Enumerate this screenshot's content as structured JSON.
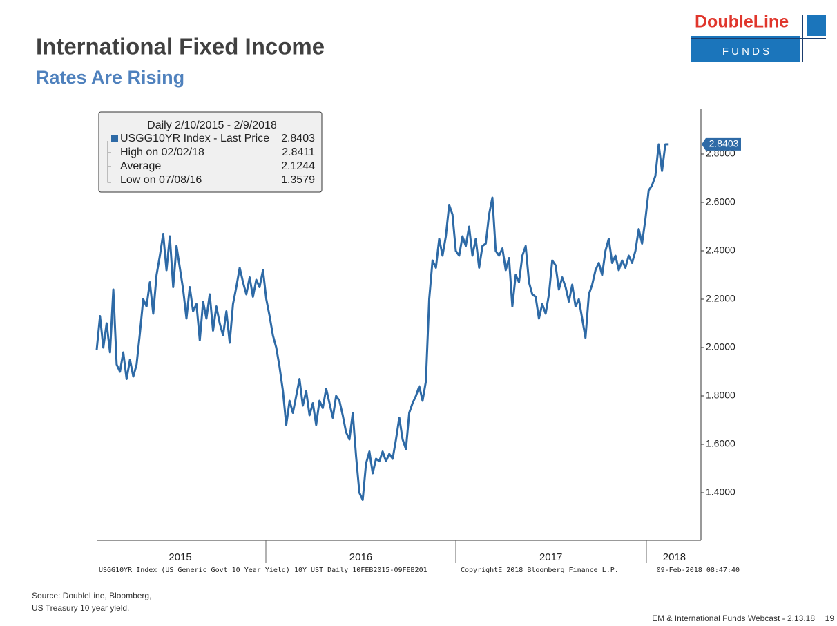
{
  "header": {
    "title": "International Fixed Income",
    "subtitle": "Rates Are Rising",
    "logo_top": "DoubleLine",
    "logo_bottom": "F U N D S"
  },
  "footer": {
    "source": [
      "Source: DoubleLine, Bloomberg,",
      "US Treasury 10 year yield."
    ],
    "webcast": "EM & International Funds Webcast - 2.13.18",
    "page": "19"
  },
  "chart_data": {
    "type": "line",
    "legend_box": {
      "title": "Daily 2/10/2015 - 2/9/2018",
      "rows": [
        {
          "label": "High on 02/02/18",
          "value": 2.8411
        },
        {
          "label": "Average",
          "value": 2.1244
        },
        {
          "label": "Low on 07/08/16",
          "value": 1.3579
        }
      ]
    },
    "last_price": 2.8403,
    "bloomberg_notes": [
      "USGG10YR Index (US Generic Govt 10 Year Yield) 10Y UST  Daily 10FEB2015-09FEB201",
      "CopyrightE 2018 Bloomberg Finance L.P.",
      "09-Feb-2018 08:47:40"
    ],
    "xlim": [
      2015.11,
      2018.29
    ],
    "xticks": [
      {
        "value": 2015.55,
        "label": "2015"
      },
      {
        "value": 2016.5,
        "label": "2016"
      },
      {
        "value": 2017.5,
        "label": "2017"
      },
      {
        "value": 2018.15,
        "label": "2018"
      }
    ],
    "ylim": [
      1.2,
      3.0
    ],
    "yticks": [
      {
        "value": 1.4,
        "label": "1.4000"
      },
      {
        "value": 1.6,
        "label": "1.6000"
      },
      {
        "value": 1.8,
        "label": "1.8000"
      },
      {
        "value": 2.0,
        "label": "2.0000"
      },
      {
        "value": 2.2,
        "label": "2.2000"
      },
      {
        "value": 2.4,
        "label": "2.4000"
      },
      {
        "value": 2.6,
        "label": "2.6000"
      },
      {
        "value": 2.8,
        "label": "2.8000"
      }
    ],
    "grid": false,
    "x": [
      2015.11,
      2015.1275,
      2015.145,
      2015.1625,
      2015.18,
      2015.1975,
      2015.215,
      2015.2325,
      2015.25,
      2015.2675,
      2015.285,
      2015.3025,
      2015.32,
      2015.3375,
      2015.355,
      2015.3725,
      2015.39,
      2015.4075,
      2015.425,
      2015.4425,
      2015.46,
      2015.4775,
      2015.495,
      2015.5125,
      2015.53,
      2015.5475,
      2015.565,
      2015.5825,
      2015.6,
      2015.6175,
      2015.635,
      2015.6525,
      2015.67,
      2015.6875,
      2015.705,
      2015.7225,
      2015.74,
      2015.7575,
      2015.775,
      2015.7925,
      2015.81,
      2015.8275,
      2015.845,
      2015.8625,
      2015.88,
      2015.8975,
      2015.915,
      2015.9325,
      2015.95,
      2015.9675,
      2015.985,
      2016.0025,
      2016.02,
      2016.0375,
      2016.055,
      2016.0725,
      2016.09,
      2016.1075,
      2016.125,
      2016.1425,
      2016.16,
      2016.1775,
      2016.195,
      2016.2125,
      2016.23,
      2016.2475,
      2016.265,
      2016.2825,
      2016.3,
      2016.3175,
      2016.335,
      2016.3525,
      2016.37,
      2016.3875,
      2016.405,
      2016.4225,
      2016.44,
      2016.4575,
      2016.475,
      2016.4925,
      2016.51,
      2016.5275,
      2016.545,
      2016.5625,
      2016.58,
      2016.5975,
      2016.615,
      2016.6325,
      2016.65,
      2016.6675,
      2016.685,
      2016.7025,
      2016.72,
      2016.7375,
      2016.755,
      2016.7725,
      2016.79,
      2016.8075,
      2016.825,
      2016.8425,
      2016.86,
      2016.8775,
      2016.895,
      2016.9125,
      2016.93,
      2016.9475,
      2016.965,
      2016.9825,
      2017.0,
      2017.0175,
      2017.035,
      2017.0525,
      2017.07,
      2017.0875,
      2017.105,
      2017.1225,
      2017.14,
      2017.1575,
      2017.175,
      2017.1925,
      2017.21,
      2017.2275,
      2017.245,
      2017.2625,
      2017.28,
      2017.2975,
      2017.315,
      2017.3325,
      2017.35,
      2017.3675,
      2017.385,
      2017.4025,
      2017.42,
      2017.4375,
      2017.455,
      2017.4725,
      2017.49,
      2017.5075,
      2017.525,
      2017.5425,
      2017.56,
      2017.5775,
      2017.595,
      2017.6125,
      2017.63,
      2017.6475,
      2017.665,
      2017.6825,
      2017.7,
      2017.7175,
      2017.735,
      2017.7525,
      2017.77,
      2017.7875,
      2017.805,
      2017.8225,
      2017.84,
      2017.8575,
      2017.875,
      2017.8925,
      2017.91,
      2017.9275,
      2017.945,
      2017.9625,
      2017.98,
      2017.9975,
      2018.015,
      2018.0325,
      2018.05,
      2018.0675,
      2018.085,
      2018.1025,
      2018.12
    ],
    "series": [
      {
        "name": "USGG10YR Index - Last Price",
        "color": "#2e6aa6",
        "values": [
          1.99,
          2.13,
          2.0,
          2.1,
          1.98,
          2.24,
          1.93,
          1.9,
          1.98,
          1.87,
          1.95,
          1.88,
          1.93,
          2.06,
          2.2,
          2.17,
          2.27,
          2.14,
          2.3,
          2.38,
          2.47,
          2.32,
          2.46,
          2.25,
          2.42,
          2.33,
          2.24,
          2.12,
          2.25,
          2.15,
          2.18,
          2.03,
          2.19,
          2.12,
          2.22,
          2.07,
          2.17,
          2.1,
          2.05,
          2.15,
          2.02,
          2.18,
          2.25,
          2.33,
          2.27,
          2.22,
          2.29,
          2.21,
          2.28,
          2.25,
          2.32,
          2.2,
          2.13,
          2.05,
          2.0,
          1.92,
          1.82,
          1.68,
          1.78,
          1.73,
          1.8,
          1.87,
          1.76,
          1.82,
          1.72,
          1.77,
          1.68,
          1.78,
          1.75,
          1.83,
          1.77,
          1.71,
          1.8,
          1.78,
          1.72,
          1.65,
          1.62,
          1.73,
          1.55,
          1.4,
          1.37,
          1.52,
          1.57,
          1.48,
          1.54,
          1.53,
          1.57,
          1.53,
          1.56,
          1.54,
          1.62,
          1.71,
          1.62,
          1.58,
          1.73,
          1.77,
          1.8,
          1.84,
          1.78,
          1.86,
          2.2,
          2.36,
          2.33,
          2.45,
          2.38,
          2.46,
          2.59,
          2.55,
          2.4,
          2.38,
          2.46,
          2.42,
          2.5,
          2.38,
          2.45,
          2.33,
          2.42,
          2.43,
          2.55,
          2.62,
          2.4,
          2.38,
          2.41,
          2.32,
          2.37,
          2.17,
          2.3,
          2.27,
          2.38,
          2.42,
          2.27,
          2.22,
          2.21,
          2.12,
          2.18,
          2.14,
          2.22,
          2.36,
          2.34,
          2.24,
          2.29,
          2.25,
          2.19,
          2.26,
          2.17,
          2.2,
          2.12,
          2.04,
          2.22,
          2.26,
          2.32,
          2.35,
          2.3,
          2.4,
          2.45,
          2.35,
          2.38,
          2.32,
          2.36,
          2.33,
          2.38,
          2.35,
          2.4,
          2.49,
          2.43,
          2.53,
          2.65,
          2.67,
          2.71,
          2.84,
          2.73,
          2.84,
          2.8403
        ]
      }
    ]
  }
}
